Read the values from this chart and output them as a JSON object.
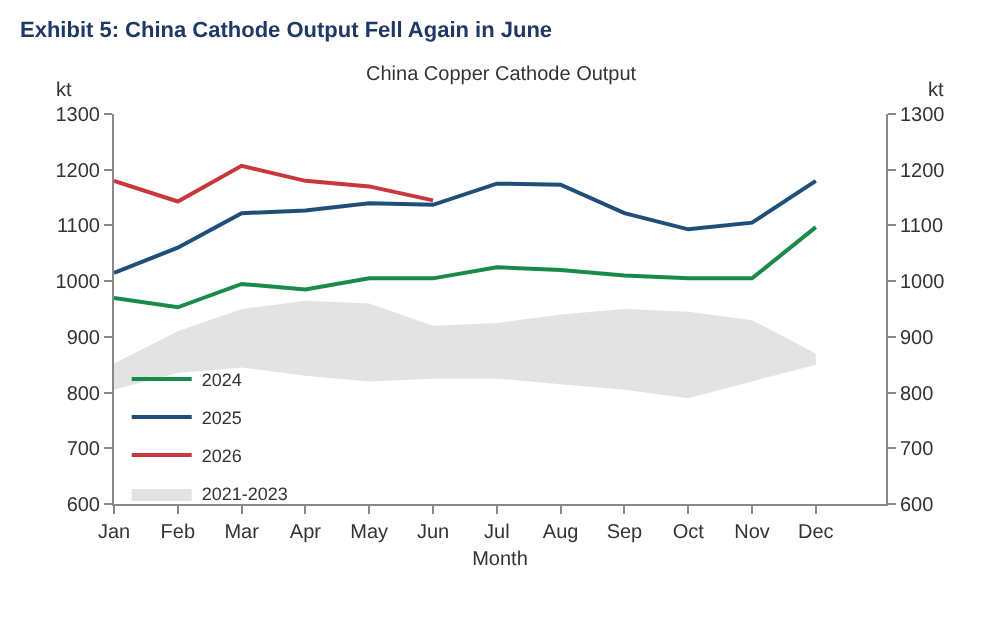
{
  "chart_data": {
    "type": "line",
    "title": "Exhibit 5: China Cathode Output Fell Again in June",
    "subtitle": "China Copper Cathode Output",
    "xlabel": "Month",
    "ylabel": "kt",
    "y2label": "kt",
    "categories": [
      "Jan",
      "Feb",
      "Mar",
      "Apr",
      "May",
      "Jun",
      "Jul",
      "Aug",
      "Sep",
      "Oct",
      "Nov",
      "Dec"
    ],
    "series": [
      {
        "name": "2024",
        "color": "#1a8a4a",
        "values": [
          970,
          953,
          995,
          985,
          1005,
          1005,
          1025,
          1020,
          1010,
          1005,
          1005,
          1097
        ]
      },
      {
        "name": "2025",
        "color": "#1f4e79",
        "values": [
          1015,
          1060,
          1122,
          1127,
          1140,
          1137,
          1175,
          1173,
          1122,
          1093,
          1105,
          1180
        ]
      },
      {
        "name": "2026",
        "color": "#c8373b",
        "values": [
          1180,
          1143,
          1207,
          1180,
          1170,
          1145,
          null,
          null,
          null,
          null,
          null,
          null
        ]
      },
      {
        "name": "2021-2023",
        "type": "area",
        "color": "#e3e3e3",
        "values": [
          null,
          null,
          null,
          null,
          null,
          null,
          null,
          null,
          null,
          null,
          null,
          null
        ],
        "lower": [
          805,
          835,
          845,
          830,
          820,
          825,
          825,
          815,
          805,
          790,
          820,
          850
        ],
        "upper": [
          852,
          910,
          950,
          965,
          960,
          920,
          925,
          940,
          950,
          945,
          930,
          870
        ]
      }
    ],
    "ylim": [
      600,
      1300
    ],
    "yticks": [
      600,
      700,
      800,
      900,
      1000,
      1100,
      1200,
      1300
    ],
    "y2lim": [
      600,
      1300
    ],
    "y2ticks": [
      600,
      700,
      800,
      900,
      1000,
      1100,
      1200,
      1300
    ],
    "grid": false,
    "legend": "bottom left",
    "marker": "none",
    "line_style": "solid"
  }
}
